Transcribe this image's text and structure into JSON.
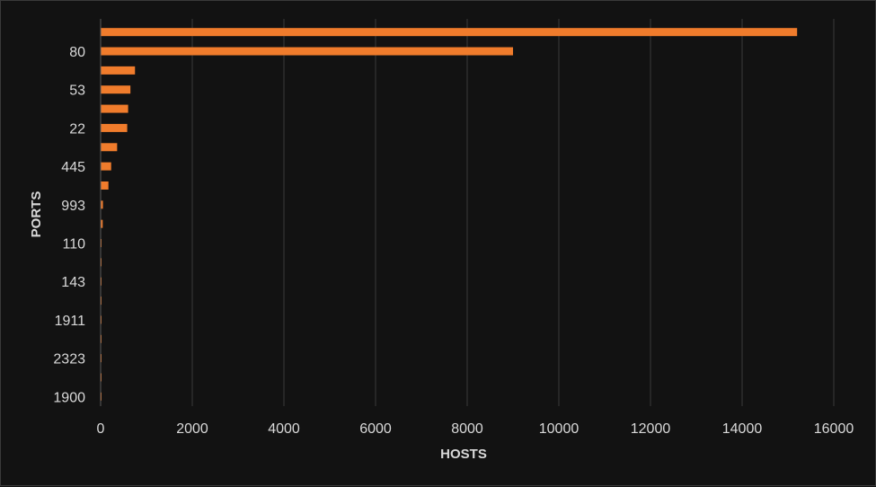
{
  "chart_data": {
    "type": "bar",
    "orientation": "horizontal",
    "xlabel": "HOSTS",
    "ylabel": "PORTS",
    "xlim": [
      0,
      16000
    ],
    "x_ticks": [
      0,
      2000,
      4000,
      6000,
      8000,
      10000,
      12000,
      14000,
      16000
    ],
    "grid": "vertical",
    "categories": [
      "",
      "80",
      "",
      "53",
      "",
      "22",
      "",
      "445",
      "",
      "993",
      "",
      "110",
      "",
      "143",
      "",
      "1911",
      "",
      "2323",
      "",
      "1900"
    ],
    "values": [
      15200,
      9000,
      750,
      650,
      600,
      580,
      360,
      230,
      170,
      50,
      45,
      15,
      12,
      10,
      8,
      7,
      6,
      5,
      4,
      3
    ],
    "bar_color": "#f07c2c"
  }
}
